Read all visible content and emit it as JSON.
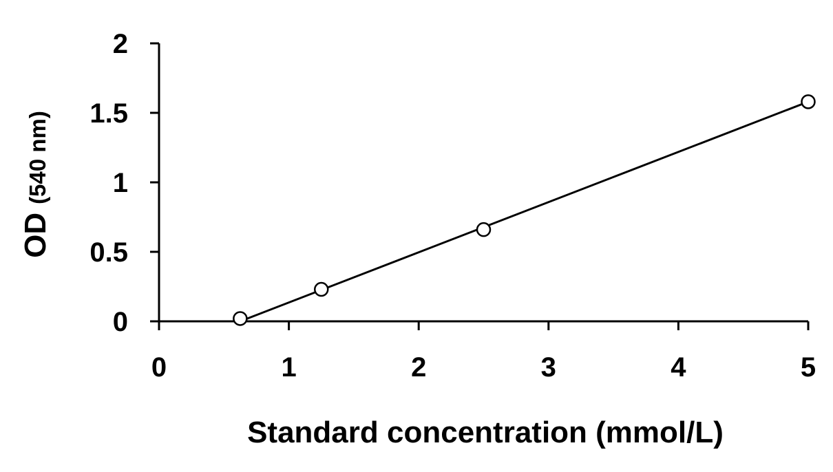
{
  "chart_data": {
    "type": "scatter",
    "title": "",
    "xlabel": "Standard concentration (mmol/L)",
    "ylabel_main": "OD",
    "ylabel_unit": "(540 nm)",
    "xlim": [
      0,
      5
    ],
    "ylim": [
      0,
      2
    ],
    "x_ticks": [
      "0",
      "1",
      "2",
      "3",
      "4",
      "5"
    ],
    "y_ticks": [
      "0",
      "0.5",
      "1",
      "1.5",
      "2"
    ],
    "grid": false,
    "legend": "none",
    "series": [
      {
        "marker": "open-circle",
        "points": [
          {
            "x": 0.625,
            "y": 0.02
          },
          {
            "x": 1.25,
            "y": 0.23
          },
          {
            "x": 2.5,
            "y": 0.66
          },
          {
            "x": 5,
            "y": 1.58
          }
        ]
      }
    ],
    "trendline": {
      "type": "linear",
      "x_start": 0.625,
      "y_start": 0.0,
      "x_end": 5,
      "y_end": 1.58
    },
    "colors": {
      "axis": "#000000",
      "line": "#000000",
      "marker_fill": "#ffffff",
      "marker_stroke": "#000000"
    }
  }
}
